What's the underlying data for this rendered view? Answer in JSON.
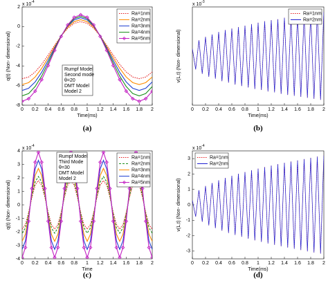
{
  "chart_data": [
    {
      "type": "line",
      "caption": "(a)",
      "xlabel": "Time(ms)",
      "ylabel": "q(t) (Non- dimensional)",
      "multiplier": {
        "base": "x 10",
        "exp": "-4"
      },
      "annotation": [
        "Rumpf Model",
        "Second mode",
        "θ=20",
        "DMT Model",
        "Model 2"
      ],
      "legend": "upper right",
      "xlim": [
        0,
        2
      ],
      "ylim": [
        -8,
        2
      ],
      "xticks": [
        0,
        0.2,
        0.4,
        0.6,
        0.8,
        1,
        1.2,
        1.4,
        1.6,
        1.8,
        2
      ],
      "yticks": [
        -8,
        -6,
        -4,
        -2,
        0,
        2
      ],
      "x": [
        0,
        0.1,
        0.2,
        0.3,
        0.4,
        0.5,
        0.6,
        0.7,
        0.8,
        0.9,
        1,
        1.1,
        1.2,
        1.3,
        1.4,
        1.5,
        1.6,
        1.7,
        1.8,
        1.9,
        2
      ],
      "series": [
        {
          "name": "Ra=1nm",
          "color": "#e41a1c",
          "dash": "dotted",
          "values": [
            -5.3,
            -5.13,
            -4.62,
            -3.85,
            -2.9,
            -1.9,
            -0.95,
            -0.18,
            0.33,
            0.5,
            0.33,
            -0.18,
            -0.95,
            -1.9,
            -2.9,
            -3.85,
            -4.62,
            -5.13,
            -5.3,
            -5.13,
            -4.62
          ]
        },
        {
          "name": "Ra=2nm",
          "color": "#ff8c00",
          "values": [
            -5.9,
            -5.7,
            -5.13,
            -4.25,
            -3.17,
            -2.03,
            -0.95,
            -0.07,
            0.5,
            0.7,
            0.5,
            -0.07,
            -0.95,
            -2.03,
            -3.17,
            -4.25,
            -5.13,
            -5.7,
            -5.9,
            -5.7,
            -5.13
          ]
        },
        {
          "name": "Ra=3nm",
          "color": "#1f3fd1",
          "values": [
            -6.5,
            -6.28,
            -5.63,
            -4.65,
            -3.44,
            -2.16,
            -0.95,
            0.03,
            0.68,
            0.9,
            0.68,
            0.03,
            -0.95,
            -2.16,
            -3.44,
            -4.65,
            -5.63,
            -6.28,
            -6.5,
            -6.28,
            -5.63
          ]
        },
        {
          "name": "Ra=4nm",
          "color": "#1a8f1a",
          "values": [
            -7.05,
            -6.81,
            -6.1,
            -5.03,
            -3.7,
            -2.3,
            -0.97,
            0.1,
            0.81,
            1.05,
            0.81,
            0.1,
            -0.97,
            -2.3,
            -3.7,
            -5.03,
            -6.1,
            -6.81,
            -7.05,
            -6.81,
            -6.1
          ]
        },
        {
          "name": "Ra=5nm",
          "color": "#c21fc2",
          "marker": "diamond",
          "values": [
            -7.6,
            -7.34,
            -6.57,
            -5.4,
            -3.97,
            -2.43,
            -1.0,
            0.17,
            0.94,
            1.2,
            0.94,
            0.17,
            -1.0,
            -2.43,
            -3.97,
            -5.4,
            -6.57,
            -7.34,
            -7.6,
            -7.34,
            -6.57
          ]
        }
      ]
    },
    {
      "type": "line",
      "caption": "(b)",
      "xlabel": "Time(ms)",
      "ylabel": "v(L,t) (Non- dimensional)",
      "multiplier": {
        "base": "x 10",
        "exp": "-3"
      },
      "legend": "upper right",
      "xlim": [
        0,
        2
      ],
      "ylim": [
        -1,
        1
      ],
      "xticks": [
        0,
        0.2,
        0.4,
        0.6,
        0.8,
        1,
        1.2,
        1.4,
        1.6,
        1.8,
        2
      ],
      "x": [
        0,
        0.05,
        0.1,
        0.15,
        0.2,
        0.25,
        0.3,
        0.35,
        0.4,
        0.45,
        0.5,
        0.55,
        0.6,
        0.65,
        0.7,
        0.75,
        0.8,
        0.85,
        0.9,
        0.95,
        1,
        1.05,
        1.1,
        1.15,
        1.2,
        1.25,
        1.3,
        1.35,
        1.4,
        1.45,
        1.5,
        1.55,
        1.6,
        1.65,
        1.7,
        1.75,
        1.8,
        1.85,
        1.9,
        1.95,
        2
      ],
      "series": [
        {
          "name": "Ra=1nm",
          "color": "#e41a1c",
          "dash": "dotted",
          "values": [
            0.15,
            -0.27,
            0.32,
            -0.36,
            0.39,
            -0.42,
            0.44,
            -0.46,
            0.49,
            -0.51,
            0.53,
            -0.54,
            0.56,
            -0.58,
            0.59,
            -0.61,
            0.62,
            -0.64,
            0.65,
            -0.67,
            0.68,
            -0.69,
            0.71,
            -0.72,
            0.73,
            -0.74,
            0.75,
            -0.77,
            0.78,
            -0.79,
            0.8,
            -0.81,
            0.82,
            -0.83,
            0.84,
            -0.85,
            0.86,
            -0.87,
            0.88,
            -0.89,
            0.9
          ]
        },
        {
          "name": "Ra=2nm",
          "color": "#1f1fd1",
          "values": [
            0.15,
            -0.27,
            0.32,
            -0.36,
            0.39,
            -0.42,
            0.44,
            -0.46,
            0.49,
            -0.51,
            0.53,
            -0.54,
            0.56,
            -0.58,
            0.59,
            -0.61,
            0.62,
            -0.64,
            0.65,
            -0.67,
            0.68,
            -0.69,
            0.71,
            -0.72,
            0.73,
            -0.74,
            0.75,
            -0.77,
            0.78,
            -0.79,
            0.8,
            -0.81,
            0.82,
            -0.83,
            0.84,
            -0.85,
            0.86,
            -0.87,
            0.88,
            -0.89,
            0.9
          ]
        }
      ]
    },
    {
      "type": "line",
      "caption": "(c)",
      "xlabel": "Time",
      "ylabel": "q(t) (Non- dimensional)",
      "multiplier": {
        "base": "x 10",
        "exp": "-4"
      },
      "annotation": [
        "Rumpf Model",
        "Third Mode",
        "θ=30",
        "DMT Model",
        "Model 2"
      ],
      "legend": "upper right",
      "xlim": [
        0,
        2
      ],
      "ylim": [
        -4,
        4
      ],
      "xticks": [
        0,
        0.2,
        0.4,
        0.6,
        0.8,
        1,
        1.2,
        1.4,
        1.6,
        1.8,
        2
      ],
      "yticks": [
        -4,
        -3,
        -2,
        -1,
        0,
        1,
        2,
        3,
        4
      ],
      "x": [
        0,
        0.05,
        0.1,
        0.15,
        0.2,
        0.25,
        0.3,
        0.35,
        0.4,
        0.45,
        0.5,
        0.55,
        0.6,
        0.65,
        0.7,
        0.75,
        0.8,
        0.85,
        0.9,
        0.95,
        1,
        1.05,
        1.1,
        1.15,
        1.2,
        1.25,
        1.3,
        1.35,
        1.4,
        1.45,
        1.5,
        1.55,
        1.6,
        1.65,
        1.7,
        1.75,
        1.8,
        1.85,
        1.9,
        1.95,
        2
      ],
      "series": [
        {
          "name": "Ra=1nm",
          "color": "#e41a1c",
          "dash": "dotted",
          "values": [
            -1.8,
            -1.46,
            -0.56,
            0.56,
            1.46,
            1.8,
            1.46,
            0.56,
            -0.56,
            -1.46,
            -1.8,
            -1.46,
            -0.56,
            0.56,
            1.46,
            1.8,
            1.46,
            0.56,
            -0.56,
            -1.46,
            -1.8,
            -1.46,
            -0.56,
            0.56,
            1.46,
            1.8,
            1.46,
            0.56,
            -0.56,
            -1.46,
            -1.8,
            -1.46,
            -0.56,
            0.56,
            1.46,
            1.8,
            1.46,
            0.56,
            -0.56,
            -1.46,
            -1.8
          ]
        },
        {
          "name": "Ra=2nm",
          "color": "#1a8f1a",
          "dash": "dashed",
          "values": [
            -2.1,
            -1.7,
            -0.65,
            0.65,
            1.7,
            2.1,
            1.7,
            0.65,
            -0.65,
            -1.7,
            -2.1,
            -1.7,
            -0.65,
            0.65,
            1.7,
            2.1,
            1.7,
            0.65,
            -0.65,
            -1.7,
            -2.1,
            -1.7,
            -0.65,
            0.65,
            1.7,
            2.1,
            1.7,
            0.65,
            -0.65,
            -1.7,
            -2.1,
            -1.7,
            -0.65,
            0.65,
            1.7,
            2.1,
            1.7,
            0.65,
            -0.65,
            -1.7,
            -2.1
          ]
        },
        {
          "name": "Ra=3nm",
          "color": "#ff8c00",
          "values": [
            -2.7,
            -2.18,
            -0.83,
            0.83,
            2.18,
            2.7,
            2.18,
            0.83,
            -0.83,
            -2.18,
            -2.7,
            -2.18,
            -0.83,
            0.83,
            2.18,
            2.7,
            2.18,
            0.83,
            -0.83,
            -2.18,
            -2.7,
            -2.18,
            -0.83,
            0.83,
            2.18,
            2.7,
            2.18,
            0.83,
            -0.83,
            -2.18,
            -2.7,
            -2.18,
            -0.83,
            0.83,
            2.18,
            2.7,
            2.18,
            0.83,
            -0.83,
            -2.18,
            -2.7
          ]
        },
        {
          "name": "Ra=4nm",
          "color": "#1f3fd1",
          "values": [
            -3.3,
            -2.67,
            -1.02,
            1.02,
            2.67,
            3.3,
            2.67,
            1.02,
            -1.02,
            -2.67,
            -3.3,
            -2.67,
            -1.02,
            1.02,
            2.67,
            3.3,
            2.67,
            1.02,
            -1.02,
            -2.67,
            -3.3,
            -2.67,
            -1.02,
            1.02,
            2.67,
            3.3,
            2.67,
            1.02,
            -1.02,
            -2.67,
            -3.3,
            -2.67,
            -1.02,
            1.02,
            2.67,
            3.3,
            2.67,
            1.02,
            -1.02,
            -2.67,
            -3.3
          ]
        },
        {
          "name": "Ra=5nm",
          "color": "#c21fc2",
          "marker": "diamond",
          "values": [
            -3.9,
            -3.16,
            -1.21,
            1.21,
            3.16,
            3.9,
            3.16,
            1.21,
            -1.21,
            -3.16,
            -3.9,
            -3.16,
            -1.21,
            1.21,
            3.16,
            3.9,
            3.16,
            1.21,
            -1.21,
            -3.16,
            -3.9,
            -3.16,
            -1.21,
            1.21,
            3.16,
            3.9,
            3.16,
            1.21,
            -1.21,
            -3.16,
            -3.9,
            -3.16,
            -1.21,
            1.21,
            3.16,
            3.9,
            3.16,
            1.21,
            -1.21,
            -3.16,
            -3.9
          ]
        }
      ]
    },
    {
      "type": "line",
      "caption": "(d)",
      "xlabel": "Time(ms)",
      "ylabel": "v(L,t) (Non- dimensional)",
      "multiplier": {
        "base": "x 10",
        "exp": "-4"
      },
      "legend": "upper left",
      "xlim": [
        0,
        2
      ],
      "ylim": [
        -3.5,
        3.5
      ],
      "xticks": [
        0,
        0.2,
        0.4,
        0.6,
        0.8,
        1,
        1.2,
        1.4,
        1.6,
        1.8,
        2
      ],
      "yticks": [
        -3,
        -2,
        -1,
        0,
        1,
        2,
        3
      ],
      "x": [
        0,
        0.05,
        0.1,
        0.15,
        0.2,
        0.25,
        0.3,
        0.35,
        0.4,
        0.45,
        0.5,
        0.55,
        0.6,
        0.65,
        0.7,
        0.75,
        0.8,
        0.85,
        0.9,
        0.95,
        1,
        1.05,
        1.1,
        1.15,
        1.2,
        1.25,
        1.3,
        1.35,
        1.4,
        1.45,
        1.5,
        1.55,
        1.6,
        1.65,
        1.7,
        1.75,
        1.8,
        1.85,
        1.9,
        1.95,
        2
      ],
      "series": [
        {
          "name": "Ra=1nm",
          "color": "#e41a1c",
          "dash": "dotted",
          "values": [
            0.3,
            -0.76,
            0.95,
            -1.09,
            1.22,
            -1.33,
            1.42,
            -1.51,
            1.6,
            -1.67,
            1.75,
            -1.82,
            1.89,
            -1.95,
            2.02,
            -2.07,
            2.13,
            -2.19,
            2.25,
            -2.3,
            2.35,
            -2.4,
            2.45,
            -2.5,
            2.55,
            -2.59,
            2.64,
            -2.68,
            2.73,
            -2.77,
            2.81,
            -2.85,
            2.89,
            -2.93,
            2.97,
            -3.01,
            3.05,
            -3.09,
            3.13,
            -3.16,
            3.2
          ]
        },
        {
          "name": "Ra=2nm",
          "color": "#1f1fd1",
          "values": [
            0.3,
            -0.76,
            0.95,
            -1.09,
            1.22,
            -1.33,
            1.42,
            -1.51,
            1.6,
            -1.67,
            1.75,
            -1.82,
            1.89,
            -1.95,
            2.02,
            -2.07,
            2.13,
            -2.19,
            2.25,
            -2.3,
            2.35,
            -2.4,
            2.45,
            -2.5,
            2.55,
            -2.59,
            2.64,
            -2.68,
            2.73,
            -2.77,
            2.81,
            -2.85,
            2.89,
            -2.93,
            2.97,
            -3.01,
            3.05,
            -3.09,
            3.13,
            -3.16,
            3.2
          ]
        }
      ]
    }
  ]
}
